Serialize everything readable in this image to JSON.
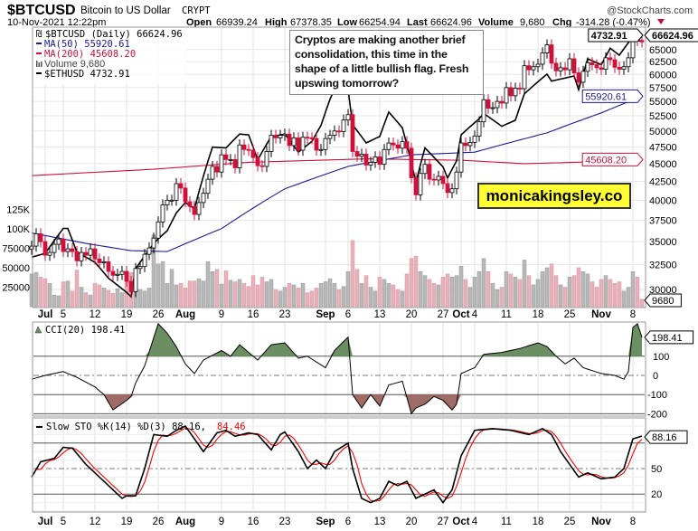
{
  "header": {
    "symbol": "$BTCUSD",
    "name": "Bitcoin to US Dollar",
    "exchange": "CRYPT",
    "copyright": "@StockCharts.com",
    "datetime": "10-Nov-2021 12:22pm",
    "open_label": "Open",
    "open": "66939.24",
    "high_label": "High",
    "high": "67378.35",
    "low_label": "Low",
    "low": "66254.94",
    "last_label": "Last",
    "last": "66624.96",
    "volume_label": "Volume",
    "volume": "9,680",
    "chg_label": "Chg",
    "chg": "-314.28 (-0.47%)"
  },
  "legend": {
    "price": "$BTCUSD (Daily) 66624.96",
    "ma50": "MA(50) 55920.61",
    "ma200": "MA(200) 45608.20",
    "volume": "Volume 9,680",
    "eth": "$ETHUSD 4732.91",
    "cci": "CCI(20) 198.41",
    "sto_prefix": "Slow STO %K(14) %D(3) 88.16,",
    "sto_d": "84.46"
  },
  "annotation": "Cryptos are making another brief consolidation, this time in the shape of a little bullish flag. Fresh upswing tomorrow?",
  "watermark": "monicakingsley.co",
  "colors": {
    "up": "#ffffff",
    "down": "#d0103a",
    "ma50": "#1a1a9c",
    "ma200": "#d0103a",
    "eth": "#000000",
    "vol_up": "#b8b8b8",
    "vol_down": "#e8b0b8",
    "cci_pos": "#6b8e63",
    "cci_neg": "#9e6b67",
    "sto_d": "#ff0000",
    "watermark_bg": "#ffff33"
  },
  "chart_data": [
    {
      "type": "candlestick",
      "scale": "log",
      "first_date": "2021-06-28",
      "btc_close": [
        34500,
        35900,
        35000,
        33500,
        33800,
        34700,
        35300,
        33900,
        34200,
        33900,
        32900,
        33800,
        33500,
        34200,
        33100,
        32700,
        32800,
        31800,
        31400,
        31500,
        31800,
        30800,
        29800,
        32100,
        32300,
        33600,
        34300,
        35400,
        37300,
        39400,
        40000,
        40000,
        42200,
        41600,
        39800,
        39200,
        38200,
        39700,
        40900,
        42800,
        44600,
        43800,
        46300,
        45600,
        45600,
        44400,
        47800,
        47100,
        47000,
        45900,
        44700,
        44600,
        46800,
        49300,
        48900,
        49300,
        49500,
        47700,
        48900,
        47000,
        49000,
        48900,
        48800,
        47000,
        47100,
        48800,
        49300,
        50000,
        49900,
        51800,
        52700,
        46800,
        46100,
        46400,
        44800,
        45200,
        46000,
        44900,
        47100,
        48100,
        47800,
        47300,
        48300,
        47300,
        43000,
        40700,
        43600,
        44900,
        42800,
        42700,
        43200,
        42200,
        41000,
        41500,
        43800,
        48100,
        47700,
        48200,
        49200,
        51500,
        55300,
        53800,
        53900,
        55000,
        54700,
        57500,
        56000,
        57400,
        57300,
        61700,
        60900,
        61500,
        62000,
        64300,
        66000,
        62200,
        60700,
        61300,
        60900,
        63100,
        60300,
        58500,
        60600,
        62300,
        61900,
        61300,
        61000,
        63300,
        62900,
        61400,
        61000,
        61500,
        63300,
        67500,
        66939.24,
        66624.96
      ],
      "volume": [
        42000,
        44000,
        38000,
        36000,
        30000,
        15000,
        14000,
        32000,
        33000,
        20000,
        47000,
        25000,
        18000,
        15000,
        30000,
        28000,
        24000,
        21000,
        17000,
        23000,
        18000,
        42000,
        44000,
        24000,
        22000,
        20000,
        24000,
        92000,
        55000,
        58000,
        30000,
        48000,
        28000,
        30000,
        24000,
        33000,
        33000,
        36000,
        33000,
        58000,
        45000,
        48000,
        29000,
        46000,
        34000,
        32000,
        35000,
        30000,
        26000,
        40000,
        28000,
        38000,
        32000,
        35000,
        22000,
        20000,
        25000,
        30000,
        28000,
        24000,
        30000,
        18000,
        20000,
        24000,
        30000,
        32000,
        36000,
        30000,
        22000,
        26000,
        45000,
        85000,
        48000,
        30000,
        40000,
        25000,
        20000,
        38000,
        35000,
        30000,
        28000,
        22000,
        20000,
        42000,
        62000,
        65000,
        45000,
        40000,
        35000,
        30000,
        28000,
        38000,
        42000,
        38000,
        40000,
        52000,
        35000,
        25000,
        38000,
        45000,
        62000,
        45000,
        30000,
        22000,
        25000,
        45000,
        42000,
        38000,
        35000,
        60000,
        40000,
        28000,
        35000,
        45000,
        50000,
        55000,
        40000,
        28000,
        25000,
        38000,
        40000,
        50000,
        45000,
        42000,
        32000,
        25000,
        35000,
        40000,
        35000,
        30000,
        32000,
        20000,
        25000,
        45000,
        38000,
        9680
      ],
      "ma50": [
        [
          "2021-06-28",
          36000
        ],
        [
          "2021-07-10",
          34800
        ],
        [
          "2021-07-20",
          34000
        ],
        [
          "2021-07-28",
          33900
        ],
        [
          "2021-08-09",
          36500
        ],
        [
          "2021-08-23",
          41500
        ],
        [
          "2021-09-06",
          44600
        ],
        [
          "2021-09-20",
          46300
        ],
        [
          "2021-10-04",
          46700
        ],
        [
          "2021-10-20",
          49700
        ],
        [
          "2021-11-01",
          53000
        ],
        [
          "2021-11-10",
          55920.61
        ]
      ],
      "ma200": [
        [
          "2021-06-28",
          43300
        ],
        [
          "2021-07-25",
          44200
        ],
        [
          "2021-08-15",
          45200
        ],
        [
          "2021-09-10",
          45700
        ],
        [
          "2021-10-01",
          45500
        ],
        [
          "2021-10-15",
          45000
        ],
        [
          "2021-11-01",
          45300
        ],
        [
          "2021-11-10",
          45608.2
        ]
      ],
      "eth": [
        [
          "2021-06-28",
          2080
        ],
        [
          "2021-07-01",
          2110
        ],
        [
          "2021-07-05",
          2320
        ],
        [
          "2021-07-06",
          2320
        ],
        [
          "2021-07-08",
          2120
        ],
        [
          "2021-07-12",
          2040
        ],
        [
          "2021-07-15",
          1920
        ],
        [
          "2021-07-19",
          1820
        ],
        [
          "2021-07-20",
          1790
        ],
        [
          "2021-07-21",
          1990
        ],
        [
          "2021-07-25",
          2190
        ],
        [
          "2021-07-26",
          2230
        ],
        [
          "2021-07-28",
          2300
        ],
        [
          "2021-07-30",
          2460
        ],
        [
          "2021-08-01",
          2560
        ],
        [
          "2021-08-03",
          2500
        ],
        [
          "2021-08-05",
          2830
        ],
        [
          "2021-08-07",
          3160
        ],
        [
          "2021-08-10",
          3150
        ],
        [
          "2021-08-13",
          3320
        ],
        [
          "2021-08-15",
          3310
        ],
        [
          "2021-08-17",
          3010
        ],
        [
          "2021-08-20",
          3290
        ],
        [
          "2021-08-23",
          3320
        ],
        [
          "2021-08-26",
          3100
        ],
        [
          "2021-08-29",
          3230
        ],
        [
          "2021-08-31",
          3430
        ],
        [
          "2021-09-02",
          3790
        ],
        [
          "2021-09-03",
          3940
        ],
        [
          "2021-09-06",
          3930
        ],
        [
          "2021-09-07",
          3440
        ],
        [
          "2021-09-10",
          3210
        ],
        [
          "2021-09-13",
          3290
        ],
        [
          "2021-09-15",
          3610
        ],
        [
          "2021-09-18",
          3400
        ],
        [
          "2021-09-20",
          2980
        ],
        [
          "2021-09-21",
          2760
        ],
        [
          "2021-09-23",
          3150
        ],
        [
          "2021-09-27",
          2930
        ],
        [
          "2021-09-28",
          2810
        ],
        [
          "2021-09-30",
          3000
        ],
        [
          "2021-10-01",
          3310
        ],
        [
          "2021-10-05",
          3520
        ],
        [
          "2021-10-06",
          3590
        ],
        [
          "2021-10-10",
          3420
        ],
        [
          "2021-10-13",
          3500
        ],
        [
          "2021-10-15",
          3870
        ],
        [
          "2021-10-20",
          4170
        ],
        [
          "2021-10-21",
          4060
        ],
        [
          "2021-10-26",
          4140
        ],
        [
          "2021-10-27",
          3930
        ],
        [
          "2021-10-29",
          4420
        ],
        [
          "2021-11-01",
          4320
        ],
        [
          "2021-11-03",
          4600
        ],
        [
          "2021-11-05",
          4480
        ],
        [
          "2021-11-08",
          4810
        ],
        [
          "2021-11-09",
          4730
        ],
        [
          "2021-11-10",
          4732.91
        ]
      ],
      "price_ticks": [
        30000,
        32500,
        35000,
        37500,
        40000,
        42500,
        45000,
        47500,
        50000,
        52500,
        55000,
        57500,
        60000,
        62500,
        65000
      ],
      "volume_ticks": [
        [
          "25000",
          25000
        ],
        [
          "50000",
          50000
        ],
        [
          "75000",
          75000
        ],
        [
          "100K",
          100000
        ],
        [
          "125K",
          125000
        ]
      ],
      "tags": {
        "last": "66624.96",
        "eth": "4732.91",
        "ma50": "55920.61",
        "ma200": "45608.20",
        "volume": "9680"
      }
    },
    {
      "type": "area",
      "name": "CCI(20)",
      "levels": [
        100,
        0,
        -100,
        -200
      ],
      "tag": "198.41",
      "points": [
        [
          "2021-06-28",
          -20
        ],
        [
          "2021-07-01",
          0
        ],
        [
          "2021-07-05",
          20
        ],
        [
          "2021-07-08",
          -10
        ],
        [
          "2021-07-12",
          -60
        ],
        [
          "2021-07-14",
          -100
        ],
        [
          "2021-07-16",
          -180
        ],
        [
          "2021-07-19",
          -130
        ],
        [
          "2021-07-20",
          -110
        ],
        [
          "2021-07-21",
          -40
        ],
        [
          "2021-07-23",
          50
        ],
        [
          "2021-07-26",
          270
        ],
        [
          "2021-07-28",
          220
        ],
        [
          "2021-07-30",
          150
        ],
        [
          "2021-08-01",
          60
        ],
        [
          "2021-08-03",
          10
        ],
        [
          "2021-08-05",
          80
        ],
        [
          "2021-08-09",
          130
        ],
        [
          "2021-08-11",
          100
        ],
        [
          "2021-08-13",
          160
        ],
        [
          "2021-08-17",
          80
        ],
        [
          "2021-08-20",
          160
        ],
        [
          "2021-08-23",
          170
        ],
        [
          "2021-08-26",
          90
        ],
        [
          "2021-08-28",
          100
        ],
        [
          "2021-09-01",
          40
        ],
        [
          "2021-09-03",
          130
        ],
        [
          "2021-09-06",
          200
        ],
        [
          "2021-09-07",
          -100
        ],
        [
          "2021-09-09",
          -170
        ],
        [
          "2021-09-11",
          -100
        ],
        [
          "2021-09-13",
          -160
        ],
        [
          "2021-09-15",
          -50
        ],
        [
          "2021-09-18",
          -30
        ],
        [
          "2021-09-20",
          -200
        ],
        [
          "2021-09-21",
          -170
        ],
        [
          "2021-09-23",
          -150
        ],
        [
          "2021-09-25",
          -110
        ],
        [
          "2021-09-27",
          -130
        ],
        [
          "2021-09-29",
          -180
        ],
        [
          "2021-09-30",
          -150
        ],
        [
          "2021-10-01",
          10
        ],
        [
          "2021-10-04",
          40
        ],
        [
          "2021-10-06",
          110
        ],
        [
          "2021-10-10",
          120
        ],
        [
          "2021-10-14",
          140
        ],
        [
          "2021-10-18",
          170
        ],
        [
          "2021-10-20",
          150
        ],
        [
          "2021-10-22",
          100
        ],
        [
          "2021-10-24",
          60
        ],
        [
          "2021-10-26",
          90
        ],
        [
          "2021-10-28",
          40
        ],
        [
          "2021-11-01",
          10
        ],
        [
          "2021-11-04",
          0
        ],
        [
          "2021-11-06",
          -20
        ],
        [
          "2021-11-07",
          20
        ],
        [
          "2021-11-08",
          250
        ],
        [
          "2021-11-09",
          270
        ],
        [
          "2021-11-10",
          198.41
        ]
      ]
    },
    {
      "type": "line",
      "name": "Slow STO %K(14) %D(3)",
      "levels": [
        80,
        50,
        20
      ],
      "tick_labels": [
        "50",
        "20"
      ],
      "tag": "88.16",
      "d_last": 84.46,
      "k": [
        [
          "2021-06-28",
          40
        ],
        [
          "2021-06-30",
          58
        ],
        [
          "2021-07-03",
          62
        ],
        [
          "2021-07-05",
          75
        ],
        [
          "2021-07-07",
          74
        ],
        [
          "2021-07-10",
          55
        ],
        [
          "2021-07-12",
          45
        ],
        [
          "2021-07-15",
          30
        ],
        [
          "2021-07-18",
          15
        ],
        [
          "2021-07-19",
          18
        ],
        [
          "2021-07-21",
          18
        ],
        [
          "2021-07-23",
          50
        ],
        [
          "2021-07-25",
          90
        ],
        [
          "2021-07-28",
          88
        ],
        [
          "2021-07-30",
          95
        ],
        [
          "2021-08-01",
          100
        ],
        [
          "2021-08-03",
          85
        ],
        [
          "2021-08-05",
          70
        ],
        [
          "2021-08-08",
          92
        ],
        [
          "2021-08-10",
          95
        ],
        [
          "2021-08-12",
          88
        ],
        [
          "2021-08-15",
          92
        ],
        [
          "2021-08-17",
          90
        ],
        [
          "2021-08-20",
          72
        ],
        [
          "2021-08-22",
          90
        ],
        [
          "2021-08-23",
          93
        ],
        [
          "2021-08-26",
          70
        ],
        [
          "2021-08-28",
          50
        ],
        [
          "2021-08-30",
          60
        ],
        [
          "2021-09-01",
          50
        ],
        [
          "2021-09-03",
          70
        ],
        [
          "2021-09-06",
          80
        ],
        [
          "2021-09-07",
          50
        ],
        [
          "2021-09-09",
          15
        ],
        [
          "2021-09-11",
          10
        ],
        [
          "2021-09-13",
          15
        ],
        [
          "2021-09-15",
          35
        ],
        [
          "2021-09-17",
          30
        ],
        [
          "2021-09-19",
          35
        ],
        [
          "2021-09-21",
          15
        ],
        [
          "2021-09-23",
          20
        ],
        [
          "2021-09-25",
          25
        ],
        [
          "2021-09-27",
          10
        ],
        [
          "2021-09-29",
          25
        ],
        [
          "2021-10-01",
          65
        ],
        [
          "2021-10-04",
          95
        ],
        [
          "2021-10-08",
          97
        ],
        [
          "2021-10-12",
          95
        ],
        [
          "2021-10-16",
          90
        ],
        [
          "2021-10-19",
          97
        ],
        [
          "2021-10-21",
          90
        ],
        [
          "2021-10-23",
          70
        ],
        [
          "2021-10-25",
          55
        ],
        [
          "2021-10-27",
          40
        ],
        [
          "2021-10-29",
          45
        ],
        [
          "2021-11-01",
          38
        ],
        [
          "2021-11-04",
          40
        ],
        [
          "2021-11-06",
          50
        ],
        [
          "2021-11-08",
          85
        ],
        [
          "2021-11-10",
          88.16
        ]
      ]
    }
  ],
  "x_ticks": [
    {
      "label": "Jul",
      "date": "2021-07-01",
      "month": true
    },
    {
      "label": "5",
      "date": "2021-07-05"
    },
    {
      "label": "12",
      "date": "2021-07-12"
    },
    {
      "label": "19",
      "date": "2021-07-19"
    },
    {
      "label": "26",
      "date": "2021-07-26"
    },
    {
      "label": "Aug",
      "date": "2021-08-01",
      "month": true
    },
    {
      "label": "9",
      "date": "2021-08-09"
    },
    {
      "label": "16",
      "date": "2021-08-16"
    },
    {
      "label": "23",
      "date": "2021-08-23"
    },
    {
      "label": "Sep",
      "date": "2021-09-01",
      "month": true
    },
    {
      "label": "6",
      "date": "2021-09-06"
    },
    {
      "label": "13",
      "date": "2021-09-13"
    },
    {
      "label": "20",
      "date": "2021-09-20"
    },
    {
      "label": "27",
      "date": "2021-09-27"
    },
    {
      "label": "Oct",
      "date": "2021-10-01",
      "month": true
    },
    {
      "label": "4",
      "date": "2021-10-04"
    },
    {
      "label": "11",
      "date": "2021-10-11"
    },
    {
      "label": "18",
      "date": "2021-10-18"
    },
    {
      "label": "25",
      "date": "2021-10-25"
    },
    {
      "label": "Nov",
      "date": "2021-11-01",
      "month": true
    },
    {
      "label": "8",
      "date": "2021-11-08"
    }
  ]
}
